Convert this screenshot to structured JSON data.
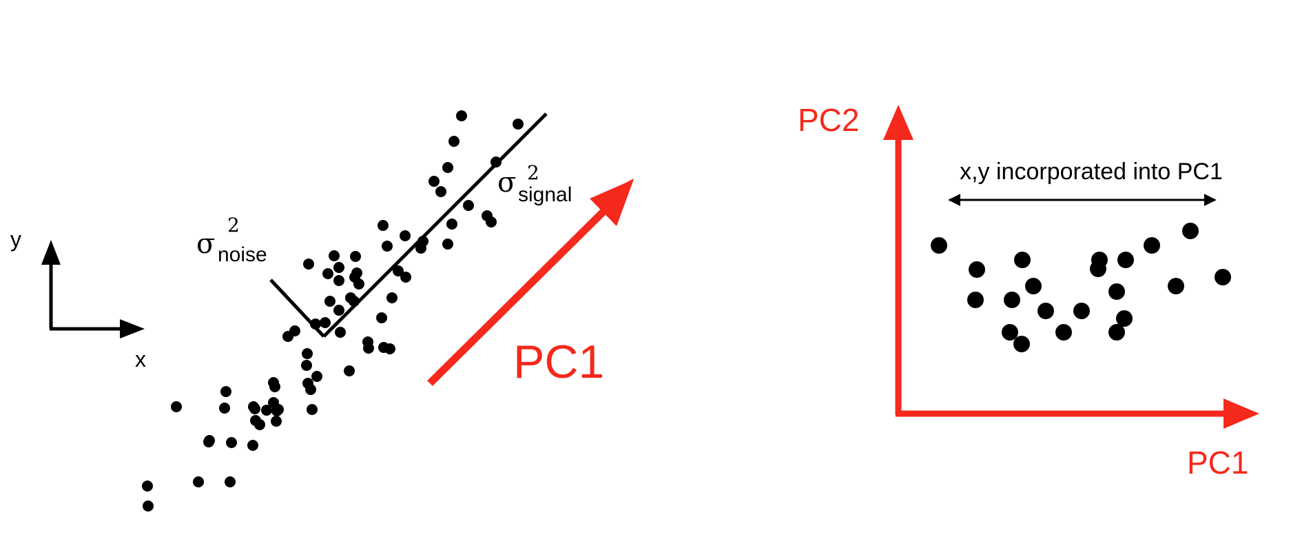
{
  "left_panel": {
    "axis_x_label": "x",
    "axis_y_label": "y",
    "noise_label": {
      "sigma": "σ",
      "exponent": "2",
      "subscript": "noise"
    },
    "signal_label": {
      "sigma": "σ",
      "exponent": "2",
      "subscript": "signal"
    },
    "pc1_label": "PC1",
    "arrow_color": "#f5291c"
  },
  "right_panel": {
    "pc2_label": "PC2",
    "pc1_label": "PC1",
    "span_label": "x,y incorporated into PC1",
    "axis_color": "#f5291c"
  }
}
